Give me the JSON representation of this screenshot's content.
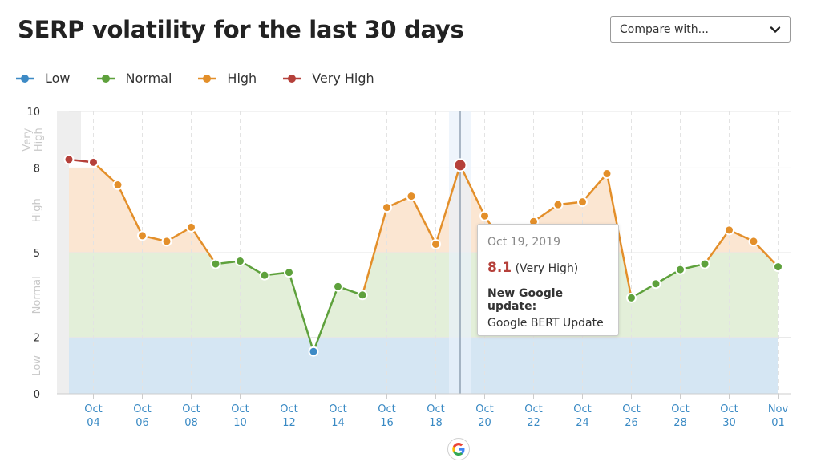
{
  "title": "SERP volatility for the last 30 days",
  "compare": {
    "label": "Compare with..."
  },
  "legend": [
    {
      "label": "Low",
      "color": "#3d8ac5"
    },
    {
      "label": "Normal",
      "color": "#5ea13c"
    },
    {
      "label": "High",
      "color": "#e38f2a"
    },
    {
      "label": "Very High",
      "color": "#b5403a"
    }
  ],
  "band_labels": [
    "Very\nHigh",
    "High",
    "Normal",
    "Low"
  ],
  "tooltip": {
    "date": "Oct 19, 2019",
    "value": "8.1",
    "level": "(Very High)",
    "update_title": "New Google update:",
    "update_name": "Google BERT Update"
  },
  "google_badge": "google-g-icon",
  "chart_data": {
    "type": "line",
    "ylim": [
      0,
      10
    ],
    "y_ticks": [
      "0",
      "2",
      "5",
      "8",
      "10"
    ],
    "bands": [
      {
        "name": "Low",
        "from": 0,
        "to": 2,
        "color": "#d5e6f3"
      },
      {
        "name": "Normal",
        "from": 2,
        "to": 5,
        "color": "#e3efd9"
      },
      {
        "name": "High",
        "from": 5,
        "to": 8,
        "color": "#fbe6d2"
      },
      {
        "name": "Very High",
        "from": 8,
        "to": 10,
        "color": "#ffffff"
      }
    ],
    "x_ticks": [
      [
        "Oct",
        "04"
      ],
      [
        "Oct",
        "06"
      ],
      [
        "Oct",
        "08"
      ],
      [
        "Oct",
        "10"
      ],
      [
        "Oct",
        "12"
      ],
      [
        "Oct",
        "14"
      ],
      [
        "Oct",
        "16"
      ],
      [
        "Oct",
        "18"
      ],
      [
        "Oct",
        "20"
      ],
      [
        "Oct",
        "22"
      ],
      [
        "Oct",
        "24"
      ],
      [
        "Oct",
        "26"
      ],
      [
        "Oct",
        "28"
      ],
      [
        "Oct",
        "30"
      ],
      [
        "Nov",
        "01"
      ]
    ],
    "x": [
      "Oct 03",
      "Oct 04",
      "Oct 05",
      "Oct 06",
      "Oct 07",
      "Oct 08",
      "Oct 09",
      "Oct 10",
      "Oct 11",
      "Oct 12",
      "Oct 13",
      "Oct 14",
      "Oct 15",
      "Oct 16",
      "Oct 17",
      "Oct 18",
      "Oct 19",
      "Oct 20",
      "Oct 21",
      "Oct 22",
      "Oct 23",
      "Oct 24",
      "Oct 25",
      "Oct 26",
      "Oct 27",
      "Oct 28",
      "Oct 29",
      "Oct 30",
      "Oct 31",
      "Nov 01"
    ],
    "values": [
      8.3,
      8.2,
      7.4,
      5.6,
      5.4,
      5.9,
      4.6,
      4.7,
      4.2,
      4.3,
      1.5,
      3.8,
      3.5,
      6.6,
      7.0,
      5.3,
      8.1,
      6.3,
      5.0,
      6.1,
      6.7,
      6.8,
      7.8,
      3.4,
      3.9,
      4.4,
      4.6,
      5.8,
      5.4,
      4.5
    ],
    "highlight": "Oct 19"
  }
}
